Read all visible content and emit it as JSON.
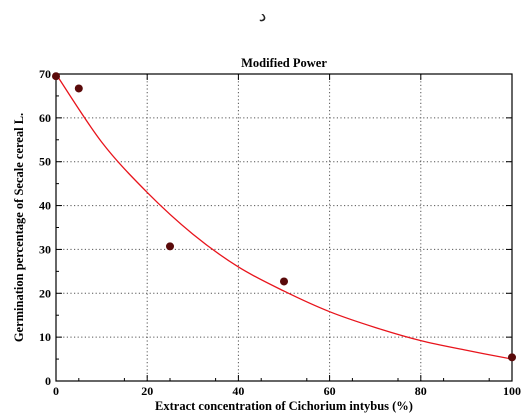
{
  "header_mark": "د",
  "chart_data": {
    "type": "scatter",
    "title": "Modified Power",
    "xlabel": "Extract concentration of Cichorium intybus (%)",
    "ylabel": "Germination percentage of Secale cereal L.",
    "xlim": [
      0,
      100
    ],
    "ylim": [
      0,
      70
    ],
    "xticks": [
      0,
      20,
      40,
      60,
      80,
      100
    ],
    "yticks": [
      0,
      10,
      20,
      30,
      40,
      50,
      60,
      70
    ],
    "grid": true,
    "grid_style": "dotted",
    "points": [
      {
        "x": 0,
        "y": 69.5
      },
      {
        "x": 5,
        "y": 66.7
      },
      {
        "x": 25,
        "y": 30.7
      },
      {
        "x": 50,
        "y": 22.7
      },
      {
        "x": 100,
        "y": 5.4
      }
    ],
    "fit_curve": [
      {
        "x": 0,
        "y": 70.0
      },
      {
        "x": 10,
        "y": 54.5
      },
      {
        "x": 20,
        "y": 43.0
      },
      {
        "x": 30,
        "y": 33.5
      },
      {
        "x": 40,
        "y": 26.0
      },
      {
        "x": 50,
        "y": 20.5
      },
      {
        "x": 60,
        "y": 15.8
      },
      {
        "x": 70,
        "y": 12.2
      },
      {
        "x": 80,
        "y": 9.2
      },
      {
        "x": 90,
        "y": 7.0
      },
      {
        "x": 100,
        "y": 5.0
      }
    ],
    "colors": {
      "points": "#5a0a0a",
      "curve": "#e8141c",
      "grid": "#555555",
      "axis": "#000000"
    }
  }
}
